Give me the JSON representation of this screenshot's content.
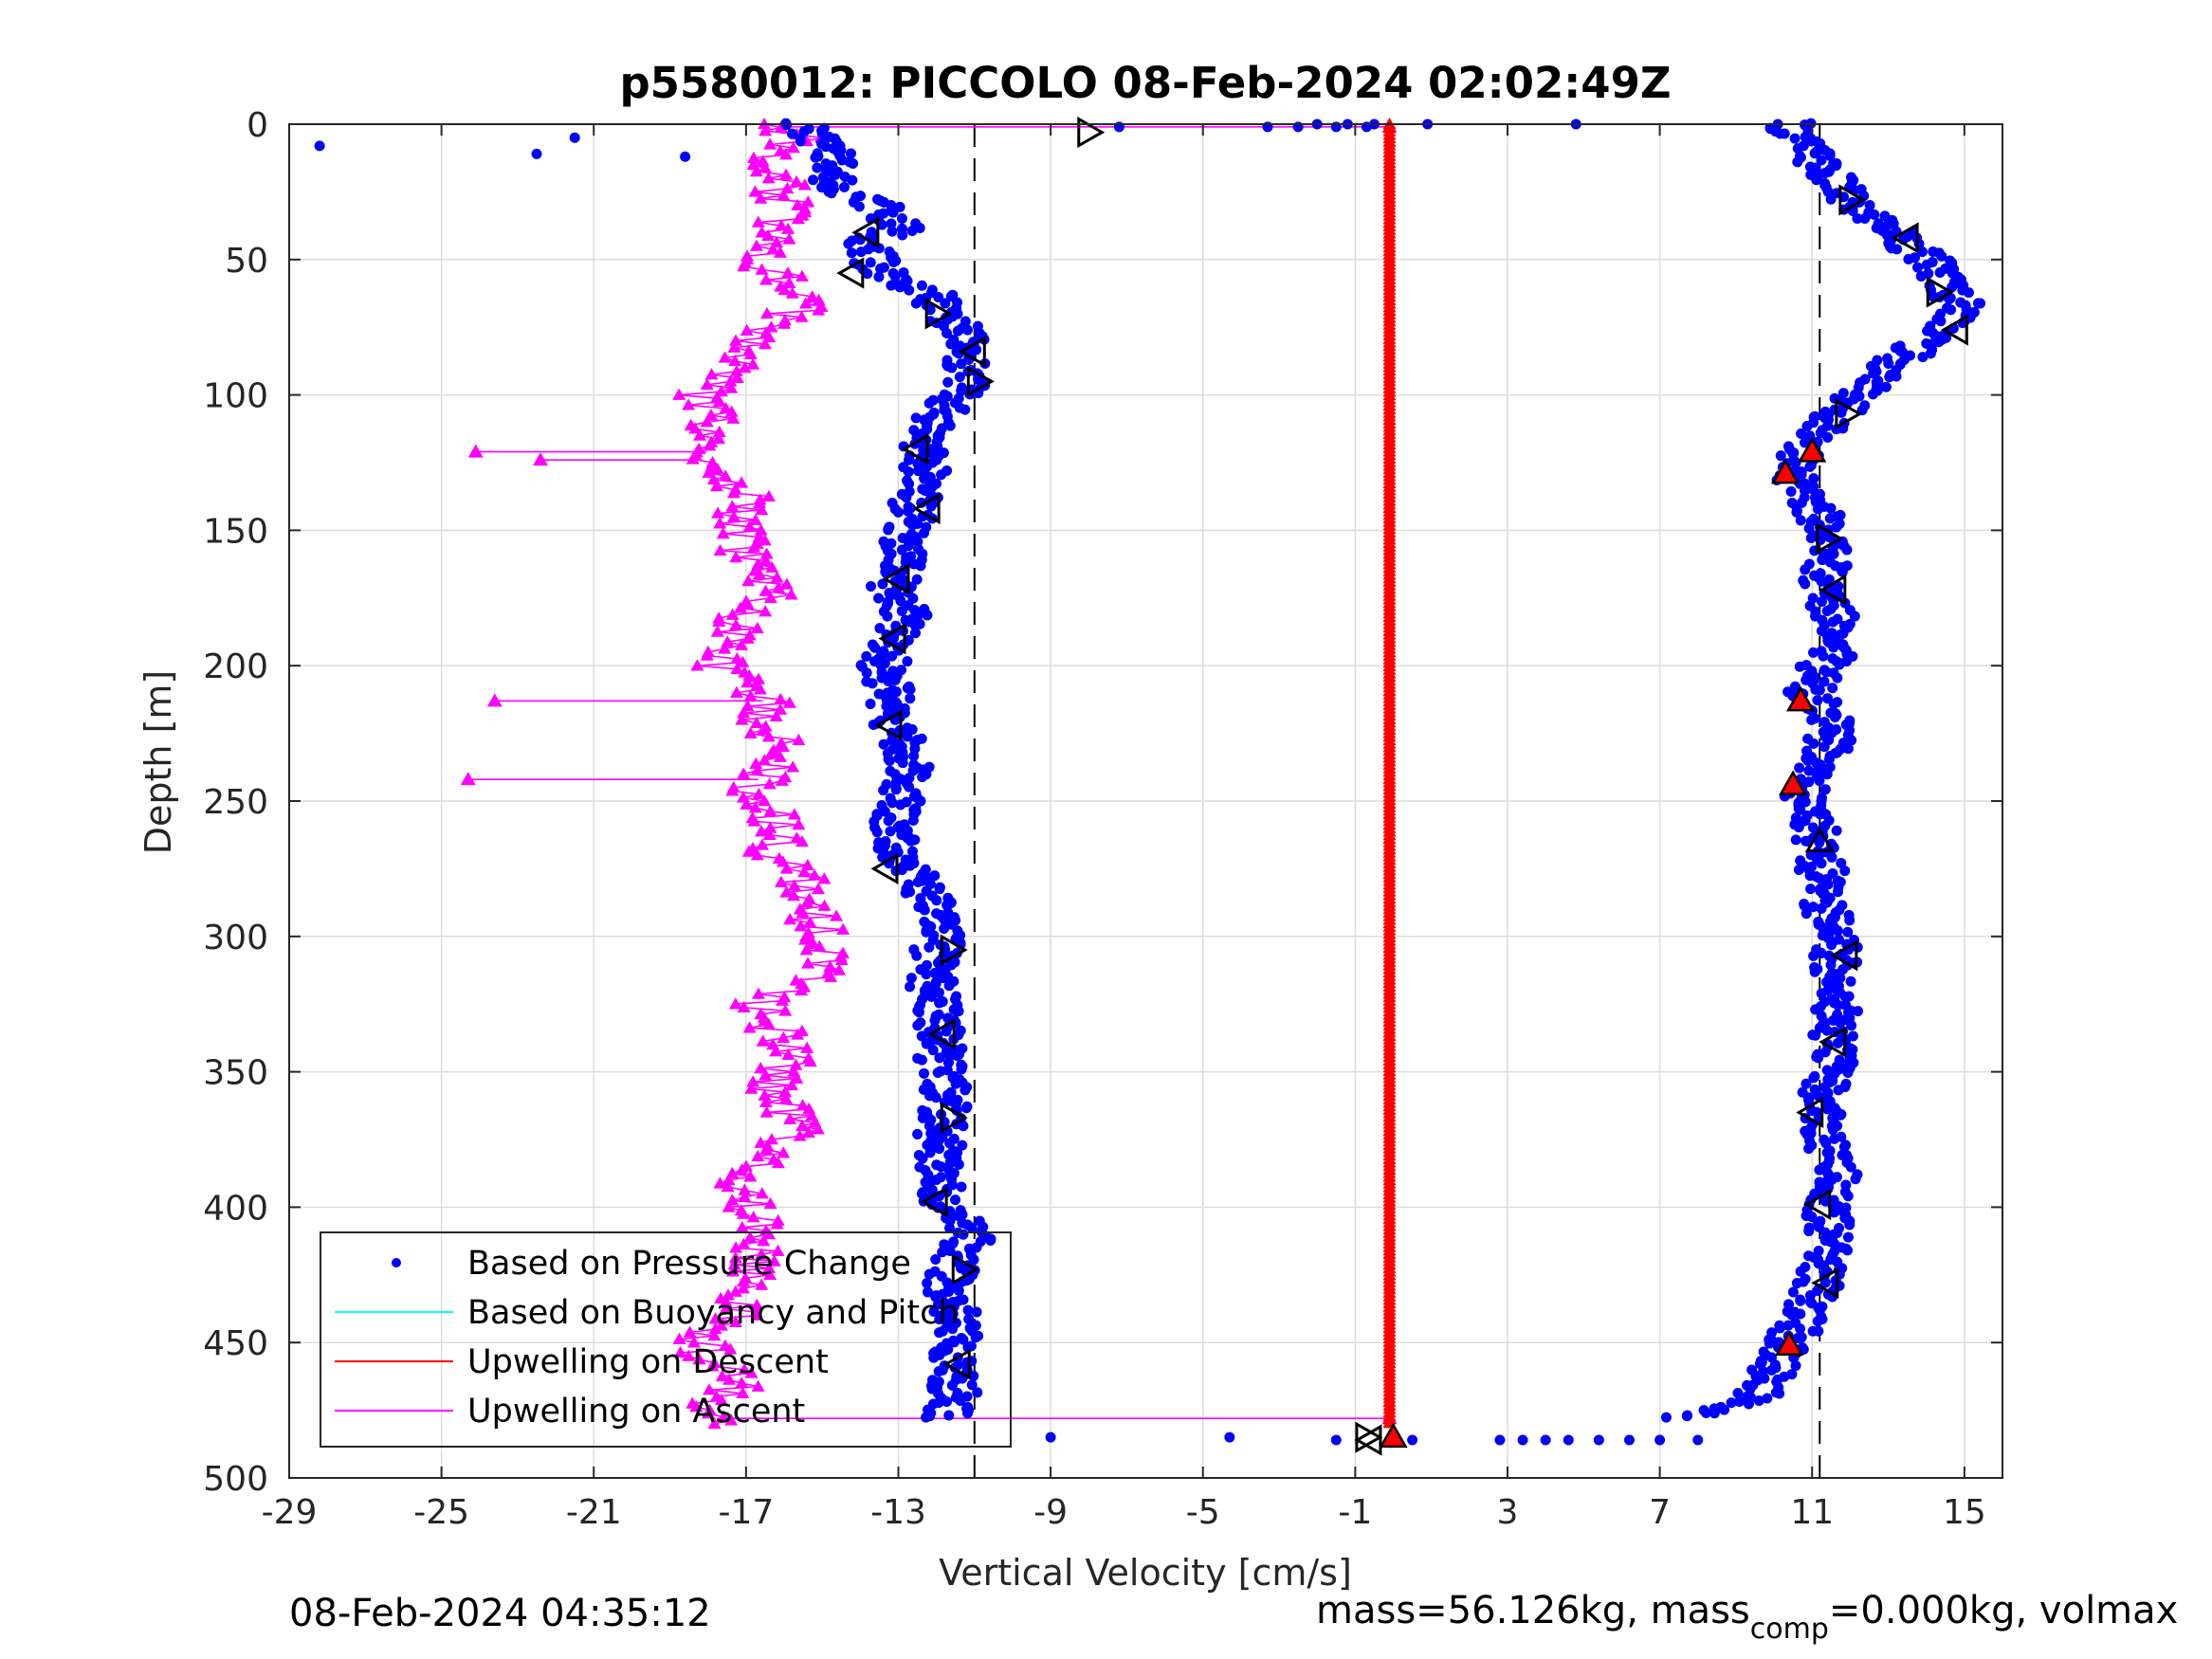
{
  "chart_data": {
    "type": "scatter",
    "title": "p5580012: PICCOLO 08-Feb-2024 02:02:49Z",
    "xlabel": "Vertical Velocity [cm/s]",
    "ylabel": "Depth [m]",
    "xlim": [
      -29,
      16
    ],
    "ylim": [
      0,
      500
    ],
    "y_reversed": true,
    "xticks": [
      "-29",
      "-25",
      "-21",
      "-17",
      "-13",
      "-9",
      "-5",
      "-1",
      "3",
      "7",
      "11",
      "15"
    ],
    "yticks": [
      "0",
      "50",
      "100",
      "150",
      "200",
      "250",
      "300",
      "350",
      "400",
      "450",
      "500"
    ],
    "grid": true,
    "legend_position": "bottom-left",
    "reference_lines_x": [
      -11,
      11.2
    ],
    "series": [
      {
        "name": "Based on Pressure Change",
        "style": "dots",
        "color": "#0000ff",
        "branch": "descent",
        "depth": [
          0,
          8,
          15,
          22,
          30,
          38,
          45,
          52,
          58,
          62,
          70,
          78,
          85,
          95,
          105,
          115,
          122,
          130,
          140,
          150,
          160,
          170,
          180,
          190,
          200,
          210,
          220,
          230,
          240,
          250,
          260,
          270,
          280,
          290,
          300,
          310,
          320,
          330,
          340,
          350,
          360,
          370,
          380,
          390,
          400,
          410,
          420,
          430,
          440,
          450,
          460,
          470,
          478
        ],
        "velocity": [
          -15.5,
          -15.0,
          -14.5,
          -14.8,
          -13.5,
          -13.0,
          -13.8,
          -13.6,
          -13.0,
          -12.2,
          -11.8,
          -11.2,
          -11.4,
          -11.1,
          -11.8,
          -12.2,
          -12.4,
          -12.2,
          -12.6,
          -12.8,
          -12.8,
          -13.2,
          -12.8,
          -13.2,
          -13.4,
          -13.2,
          -13.1,
          -12.9,
          -12.7,
          -12.9,
          -13.1,
          -12.9,
          -12.4,
          -12.1,
          -11.9,
          -12.1,
          -12.1,
          -11.9,
          -11.9,
          -11.9,
          -11.7,
          -11.9,
          -11.9,
          -11.9,
          -11.7,
          -11.0,
          -11.5,
          -11.7,
          -11.5,
          -11.5,
          -11.6,
          -11.5,
          -11.8
        ]
      },
      {
        "name": "",
        "style": "dots",
        "color": "#0000ff",
        "branch": "ascent",
        "depth": [
          0,
          8,
          15,
          22,
          30,
          38,
          45,
          52,
          60,
          68,
          75,
          82,
          90,
          98,
          105,
          112,
          118,
          124,
          130,
          140,
          150,
          160,
          170,
          180,
          190,
          200,
          210,
          220,
          230,
          240,
          250,
          260,
          270,
          280,
          290,
          300,
          310,
          320,
          330,
          340,
          350,
          360,
          370,
          380,
          390,
          400,
          410,
          420,
          430,
          440,
          450,
          460,
          470,
          478
        ],
        "velocity": [
          10.4,
          10.8,
          11.2,
          11.6,
          12.0,
          13.0,
          13.6,
          14.2,
          14.6,
          15.0,
          14.6,
          13.8,
          13.0,
          12.4,
          11.8,
          11.4,
          11.0,
          10.6,
          10.4,
          11.0,
          11.4,
          11.5,
          11.2,
          11.6,
          11.9,
          11.3,
          10.9,
          11.4,
          11.5,
          11.0,
          10.8,
          11.1,
          11.2,
          11.3,
          11.4,
          11.7,
          11.6,
          11.8,
          11.6,
          11.5,
          11.6,
          11.2,
          11.3,
          11.5,
          11.7,
          11.4,
          11.5,
          11.3,
          11.1,
          10.8,
          10.4,
          10.0,
          9.5,
          7.5
        ]
      },
      {
        "name": "",
        "style": "dots",
        "color": "#0000ff",
        "branch": "surface-and-bottom-outliers",
        "depth": [
          0,
          0,
          0,
          0,
          0,
          0,
          1,
          1,
          1,
          1,
          1,
          5,
          8,
          11,
          12,
          485,
          485,
          486,
          486,
          486,
          486,
          486,
          486,
          486,
          486,
          486,
          486
        ],
        "velocity": [
          10.1,
          4.8,
          0.9,
          -0.5,
          -1.2,
          -2.0,
          -3.3,
          -7.2,
          -0.7,
          -1.5,
          -2.5,
          -21.5,
          -28.2,
          -22.5,
          -18.6,
          -9.0,
          -4.3,
          -1.5,
          0.5,
          2.8,
          3.4,
          4.0,
          4.6,
          5.4,
          6.2,
          7.0,
          8.0
        ]
      },
      {
        "name": "Based on Buoyancy and Pitch",
        "style": "line",
        "color": "#00ffff",
        "depth": [],
        "velocity": []
      },
      {
        "name": "Upwelling on Descent",
        "style": "line-markers",
        "color": "#ff0000",
        "depth": [
          0,
          480
        ],
        "velocity": [
          -0.1,
          -0.1
        ]
      },
      {
        "name": "Upwelling on Ascent",
        "style": "line-markers",
        "color": "#ff00ff",
        "depth": [
          0,
          5,
          10,
          15,
          20,
          25,
          30,
          35,
          40,
          45,
          50,
          55,
          60,
          65,
          70,
          75,
          80,
          85,
          90,
          95,
          100,
          105,
          110,
          115,
          120,
          125,
          130,
          135,
          140,
          145,
          150,
          155,
          160,
          165,
          170,
          175,
          180,
          185,
          190,
          195,
          200,
          205,
          210,
          215,
          220,
          225,
          230,
          235,
          240,
          245,
          250,
          255,
          260,
          265,
          270,
          275,
          280,
          285,
          290,
          295,
          300,
          305,
          310,
          315,
          320,
          325,
          330,
          335,
          340,
          345,
          350,
          355,
          360,
          365,
          370,
          375,
          380,
          385,
          390,
          395,
          400,
          405,
          410,
          415,
          420,
          425,
          430,
          435,
          440,
          445,
          450,
          455,
          460,
          465,
          470,
          475,
          480
        ],
        "velocity": [
          -16.2,
          -15.6,
          -15.8,
          -16.4,
          -15.9,
          -16.2,
          -16.0,
          -15.9,
          -16.4,
          -16.6,
          -16.7,
          -16.2,
          -15.9,
          -15.5,
          -15.8,
          -16.2,
          -16.6,
          -17.0,
          -17.6,
          -18.0,
          -18.1,
          -17.9,
          -18.0,
          -18.2,
          -18.0,
          -18.2,
          -17.7,
          -17.1,
          -17.0,
          -17.5,
          -17.3,
          -17.0,
          -17.1,
          -16.9,
          -16.4,
          -16.2,
          -16.9,
          -17.2,
          -17.5,
          -17.8,
          -17.6,
          -17.2,
          -16.8,
          -16.4,
          -16.6,
          -16.4,
          -16.0,
          -16.2,
          -16.6,
          -16.8,
          -16.9,
          -16.4,
          -16.0,
          -16.2,
          -16.3,
          -15.7,
          -15.6,
          -15.4,
          -15.2,
          -15.3,
          -15.0,
          -14.9,
          -14.8,
          -15.2,
          -15.8,
          -16.6,
          -16.4,
          -16.2,
          -16.0,
          -15.9,
          -16.0,
          -16.3,
          -16.1,
          -15.8,
          -15.7,
          -16.1,
          -16.6,
          -16.9,
          -17.1,
          -17.2,
          -16.8,
          -16.6,
          -16.4,
          -16.7,
          -16.7,
          -16.8,
          -16.6,
          -17.2,
          -17.4,
          -18.0,
          -18.2,
          -18.0,
          -17.4,
          -17.2,
          -17.6,
          -18.0,
          -17.6
        ]
      },
      {
        "name": "",
        "style": "spikes",
        "color": "#ff00ff",
        "depth": [
          1,
          121,
          124,
          213,
          242,
          478
        ],
        "velocity": [
          -0.1,
          -24.1,
          -22.4,
          -23.6,
          -24.3,
          -0.1
        ]
      },
      {
        "name": "",
        "style": "triangle-right",
        "color": "#000000",
        "depth": [
          3,
          28,
          62,
          70,
          95,
          107,
          153,
          305,
          367,
          423,
          485
        ],
        "velocity": [
          -8.0,
          12.0,
          14.3,
          -12.0,
          -10.9,
          11.9,
          11.4,
          -11.6,
          -11.6,
          -11.3,
          -0.7
        ]
      },
      {
        "name": "",
        "style": "triangle-left",
        "color": "#000000",
        "depth": [
          40,
          42,
          55,
          76,
          84,
          120,
          142,
          168,
          172,
          190,
          222,
          275,
          307,
          336,
          339,
          365,
          398,
          399,
          428,
          458,
          486
        ],
        "velocity": [
          -13.8,
          13.5,
          -14.2,
          14.8,
          -11.0,
          -12.5,
          -12.2,
          -13.0,
          11.6,
          -13.1,
          -13.2,
          -13.3,
          11.9,
          -11.8,
          11.6,
          11.0,
          -12.0,
          11.2,
          11.4,
          -11.4,
          -0.6
        ]
      },
      {
        "name": "",
        "style": "triangle-up-red",
        "color": "#ff0000",
        "depth": [
          121,
          129,
          213,
          244,
          451,
          485
        ],
        "velocity": [
          11.0,
          10.3,
          10.7,
          10.5,
          10.4,
          0.0
        ]
      },
      {
        "name": "",
        "style": "triangle-up-open",
        "color": "#000000",
        "depth": [
          265
        ],
        "velocity": [
          11.2
        ]
      }
    ]
  },
  "footer": {
    "timestamp": "08-Feb-2024 04:35:12",
    "mass_text": "mass=56.126kg, mass",
    "mass_sub": "comp",
    "mass_tail": "=0.000kg, volmax"
  }
}
